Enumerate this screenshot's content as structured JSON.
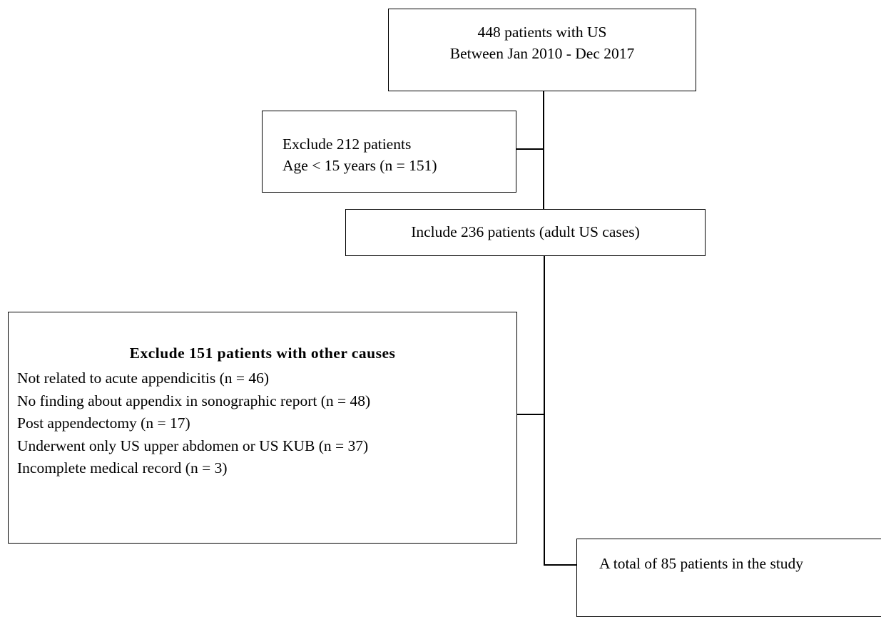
{
  "flowchart": {
    "start": {
      "line1": "448 patients with US",
      "line2": "Between Jan 2010 - Dec 2017"
    },
    "exclusion1": {
      "line1": "Exclude 212 patients",
      "line2": "Age < 15 years (n = 151)"
    },
    "inclusion": {
      "text": "Include 236 patients (adult US cases)"
    },
    "exclusion2": {
      "title": "Exclude 151 patients with other causes",
      "items": [
        "Not related to acute appendicitis (n = 46)",
        "No finding about appendix in sonographic report (n = 48)",
        "Post appendectomy (n = 17)",
        "Underwent only US upper abdomen or US KUB (n = 37)",
        "Incomplete medical record (n = 3)"
      ]
    },
    "final": {
      "text": "A total of 85 patients in the study"
    }
  }
}
